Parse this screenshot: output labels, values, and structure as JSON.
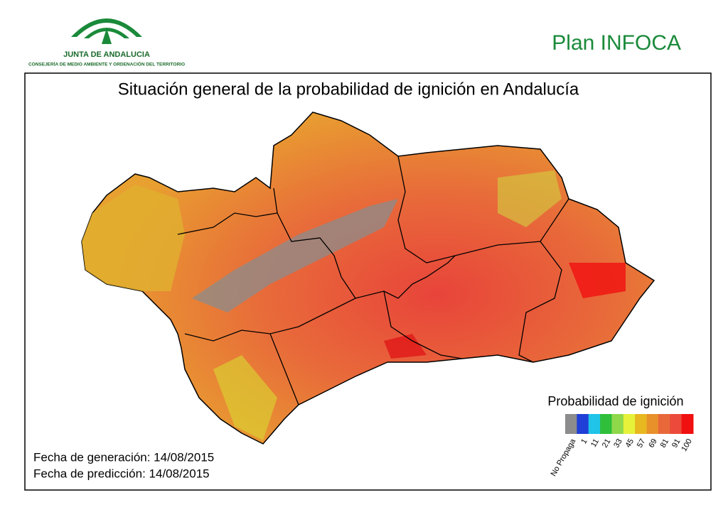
{
  "header": {
    "org_name": "JUNTA DE ANDALUCIA",
    "org_department": "CONSEJERÍA DE MEDIO AMBIENTE Y ORDENACIÓN DEL TERRITORIO",
    "plan": "Plan INFOCA"
  },
  "map": {
    "title": "Situación general de la probabilidad de ignición en Andalucía",
    "legend": {
      "title": "Probabilidad de ignición",
      "items": [
        {
          "label": "No Propaga",
          "color": "#8c8c8c"
        },
        {
          "label": "1",
          "color": "#1f3fd6"
        },
        {
          "label": "11",
          "color": "#1fc4e8"
        },
        {
          "label": "21",
          "color": "#2fbf3a"
        },
        {
          "label": "33",
          "color": "#8fd84a"
        },
        {
          "label": "45",
          "color": "#e6f23a"
        },
        {
          "label": "57",
          "color": "#e8b820"
        },
        {
          "label": "69",
          "color": "#e8902a"
        },
        {
          "label": "81",
          "color": "#e8683a"
        },
        {
          "label": "91",
          "color": "#ec4a3a"
        },
        {
          "label": "100",
          "color": "#f01010"
        }
      ]
    },
    "generation_date": "Fecha de generación: 14/08/2015",
    "prediction_date": "Fecha de predicción: 14/08/2015"
  }
}
